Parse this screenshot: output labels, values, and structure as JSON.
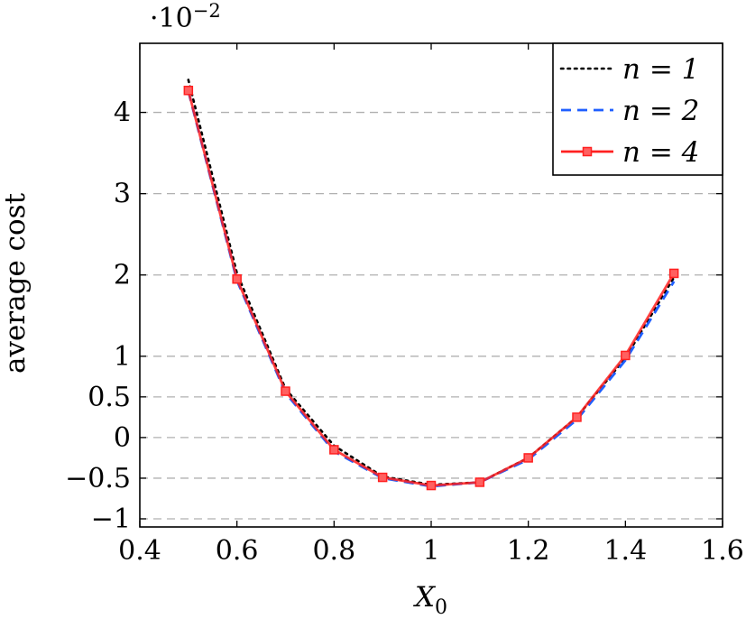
{
  "chart_data": {
    "type": "line",
    "xlabel": "X",
    "xlabel_subscript": "0",
    "ylabel": "average cost",
    "y_multiplier": "·10",
    "y_multiplier_exp": "−2",
    "xlim": [
      0.4,
      1.6
    ],
    "ylim": [
      -1.1,
      4.85
    ],
    "x_ticks": [
      0.4,
      0.6,
      0.8,
      1.0,
      1.2,
      1.4,
      1.6
    ],
    "x_tick_labels": [
      "0.4",
      "0.6",
      "0.8",
      "1",
      "1.2",
      "1.4",
      "1.6"
    ],
    "y_ticks": [
      -1,
      -0.5,
      0,
      0.5,
      1,
      2,
      3,
      4
    ],
    "y_tick_labels": [
      "−1",
      "−0.5",
      "0",
      "0.5",
      "1",
      "2",
      "3",
      "4"
    ],
    "grid": "horizontal-dashed",
    "legend_position": "top-right",
    "series": [
      {
        "name": "n = 1",
        "style": "dotted",
        "color": "#000000",
        "x": [
          0.5,
          0.6,
          0.7,
          0.8,
          0.9,
          1.0,
          1.1,
          1.2,
          1.3,
          1.4,
          1.5
        ],
        "y": [
          4.4,
          2.02,
          0.6,
          -0.1,
          -0.48,
          -0.58,
          -0.55,
          -0.25,
          0.25,
          0.98,
          1.97
        ]
      },
      {
        "name": "n = 2",
        "style": "dashed",
        "color": "#1f5fff",
        "x": [
          0.5,
          0.6,
          0.7,
          0.8,
          0.9,
          1.0,
          1.1,
          1.2,
          1.3,
          1.4,
          1.5
        ],
        "y": [
          4.26,
          1.93,
          0.55,
          -0.17,
          -0.5,
          -0.6,
          -0.55,
          -0.27,
          0.22,
          0.95,
          1.92
        ]
      },
      {
        "name": "n = 4",
        "style": "solid-square",
        "color": "#ff2020",
        "x": [
          0.5,
          0.6,
          0.7,
          0.8,
          0.9,
          1.0,
          1.1,
          1.2,
          1.3,
          1.4,
          1.5
        ],
        "y": [
          4.27,
          1.95,
          0.57,
          -0.15,
          -0.49,
          -0.59,
          -0.55,
          -0.25,
          0.25,
          1.01,
          2.02
        ]
      }
    ]
  }
}
